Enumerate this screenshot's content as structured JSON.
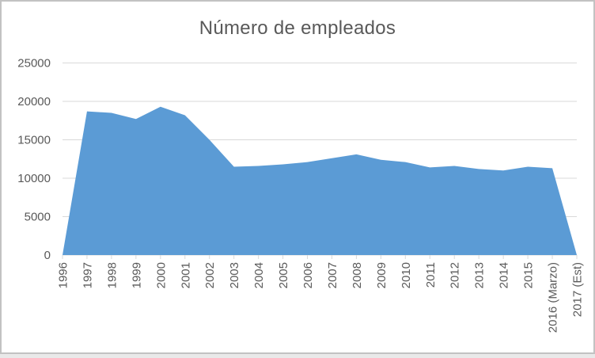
{
  "chart_data": {
    "type": "area",
    "title": "Número de empleados",
    "categories": [
      "1996",
      "1997",
      "1998",
      "1999",
      "2000",
      "2001",
      "2002",
      "2003",
      "2004",
      "2005",
      "2006",
      "2007",
      "2008",
      "2009",
      "2010",
      "2011",
      "2012",
      "2013",
      "2014",
      "2015",
      "2016 (Marzo)",
      "2017 (Est)"
    ],
    "values": [
      0,
      18700,
      18500,
      17700,
      19300,
      18200,
      15000,
      11500,
      11600,
      11800,
      12100,
      12600,
      13100,
      12400,
      12100,
      11400,
      11600,
      11200,
      11000,
      11500,
      11300,
      0
    ],
    "xlabel": "",
    "ylabel": "",
    "ylim": [
      0,
      25000
    ],
    "yticks": [
      0,
      5000,
      10000,
      15000,
      20000,
      25000
    ],
    "grid": true,
    "legend": "none",
    "x_label_rotation": -90,
    "colors": {
      "area": "#5b9bd5",
      "grid": "#d9d9d9",
      "axis": "#d9d9d9",
      "text": "#595959",
      "frame_border": "#c2c2c2"
    }
  }
}
